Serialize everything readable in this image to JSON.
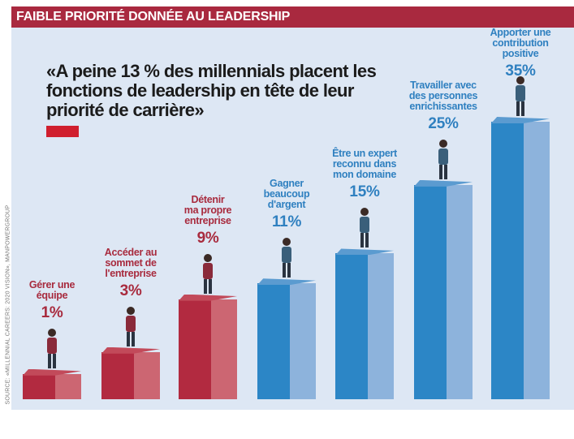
{
  "header": {
    "title": "FAIBLE PRIORITÉ DONNÉE AU LEADERSHIP"
  },
  "quote": "«A peine 13 % des millennials placent les fonctions de leadership en tête de leur priorité de carrière»",
  "source": "SOURCE: «MILLENNIAL CAREERS: 2020 VISION», MANPOWERGROUP",
  "colors": {
    "header": "#a9293f",
    "red_dark": "#b22a40",
    "red_light": "#cc6672",
    "blue_dark": "#2c86c6",
    "blue_light": "#8db3dc",
    "red_text": "#a82b3e",
    "blue_text": "#2f80c0"
  },
  "chart_data": {
    "type": "bar",
    "title": "FAIBLE PRIORITÉ DONNÉE AU LEADERSHIP",
    "xlabel": "",
    "ylabel": "",
    "ylim": [
      0,
      35
    ],
    "categories": [
      "Gérer une équipe",
      "Accéder au sommet de l'entreprise",
      "Détenir ma propre entreprise",
      "Gagner beaucoup d'argent",
      "Être un expert reconnu dans mon domaine",
      "Travailler avec des personnes enrichissantes",
      "Apporter une contribution positive"
    ],
    "label_lines": [
      [
        "Gérer une",
        "équipe"
      ],
      [
        "Accéder au",
        "sommet de",
        "l'entreprise"
      ],
      [
        "Détenir",
        "ma propre",
        "entreprise"
      ],
      [
        "Gagner",
        "beaucoup",
        "d'argent"
      ],
      [
        "Être un expert",
        "reconnu dans",
        "mon domaine"
      ],
      [
        "Travailler avec",
        "des personnes",
        "enrichissantes"
      ],
      [
        "Apporter une",
        "contribution positive"
      ]
    ],
    "values": [
      1,
      3,
      9,
      11,
      15,
      25,
      35
    ],
    "value_labels": [
      "1%",
      "3%",
      "9%",
      "11%",
      "15%",
      "25%",
      "35%"
    ],
    "color_group": [
      "red",
      "red",
      "red",
      "blue",
      "blue",
      "blue",
      "blue"
    ],
    "illustrations": [
      "team-meeting-icon",
      "climbing-person-icon",
      "jumping-woman-icon",
      "gold-coins-icon",
      "expert-presenting-icon",
      "group-of-people-icon",
      "businessman-target-icon"
    ]
  }
}
